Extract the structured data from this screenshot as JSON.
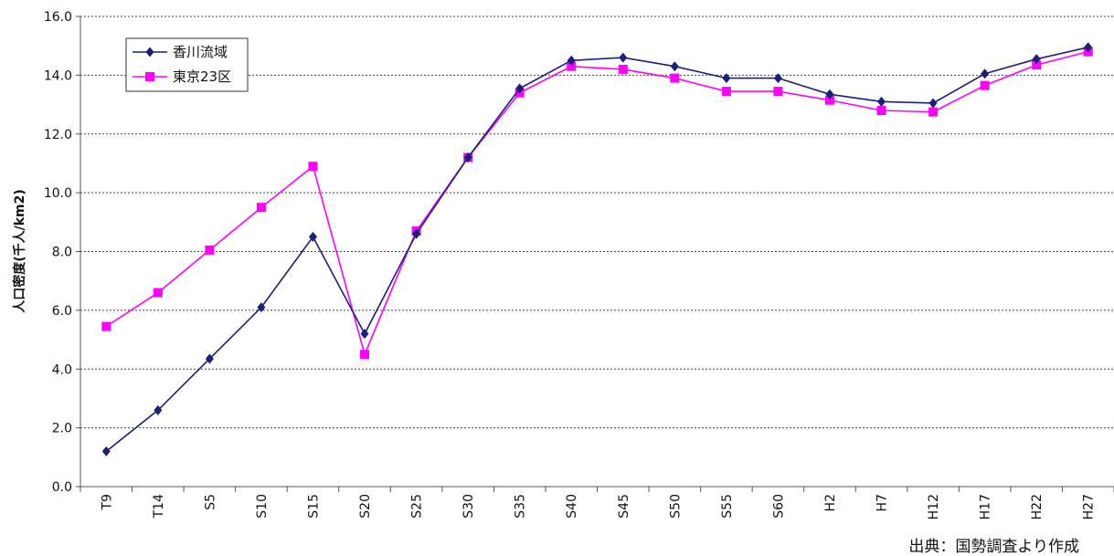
{
  "chart_data": {
    "type": "line",
    "ylabel": "人口密度(千人/km2)",
    "ylim": [
      0,
      16
    ],
    "yticks": [
      "0.0",
      "2.0",
      "4.0",
      "6.0",
      "8.0",
      "10.0",
      "12.0",
      "14.0",
      "16.0"
    ],
    "categories": [
      "T9",
      "T14",
      "S5",
      "S10",
      "S15",
      "S20",
      "S25",
      "S30",
      "S35",
      "S40",
      "S45",
      "S50",
      "S55",
      "S60",
      "H2",
      "H7",
      "H12",
      "H17",
      "H22",
      "H27"
    ],
    "grid": "horizontal dotted",
    "legend": "top-left",
    "series": [
      {
        "name": "香川流域",
        "color": "#1a1f7a",
        "marker": "diamond",
        "values": [
          1.2,
          2.6,
          4.35,
          6.1,
          8.5,
          5.2,
          8.6,
          11.2,
          13.55,
          14.5,
          14.6,
          14.3,
          13.9,
          13.9,
          13.35,
          13.1,
          13.05,
          14.05,
          14.55,
          14.95
        ]
      },
      {
        "name": "東京23区",
        "color": "#ff00ff",
        "marker": "square",
        "values": [
          5.45,
          6.6,
          8.05,
          9.5,
          10.9,
          4.5,
          8.7,
          11.2,
          13.4,
          14.3,
          14.2,
          13.9,
          13.45,
          13.45,
          13.15,
          12.8,
          12.75,
          13.65,
          14.35,
          14.8
        ]
      }
    ]
  },
  "source_note": "出典：国勢調査より作成"
}
